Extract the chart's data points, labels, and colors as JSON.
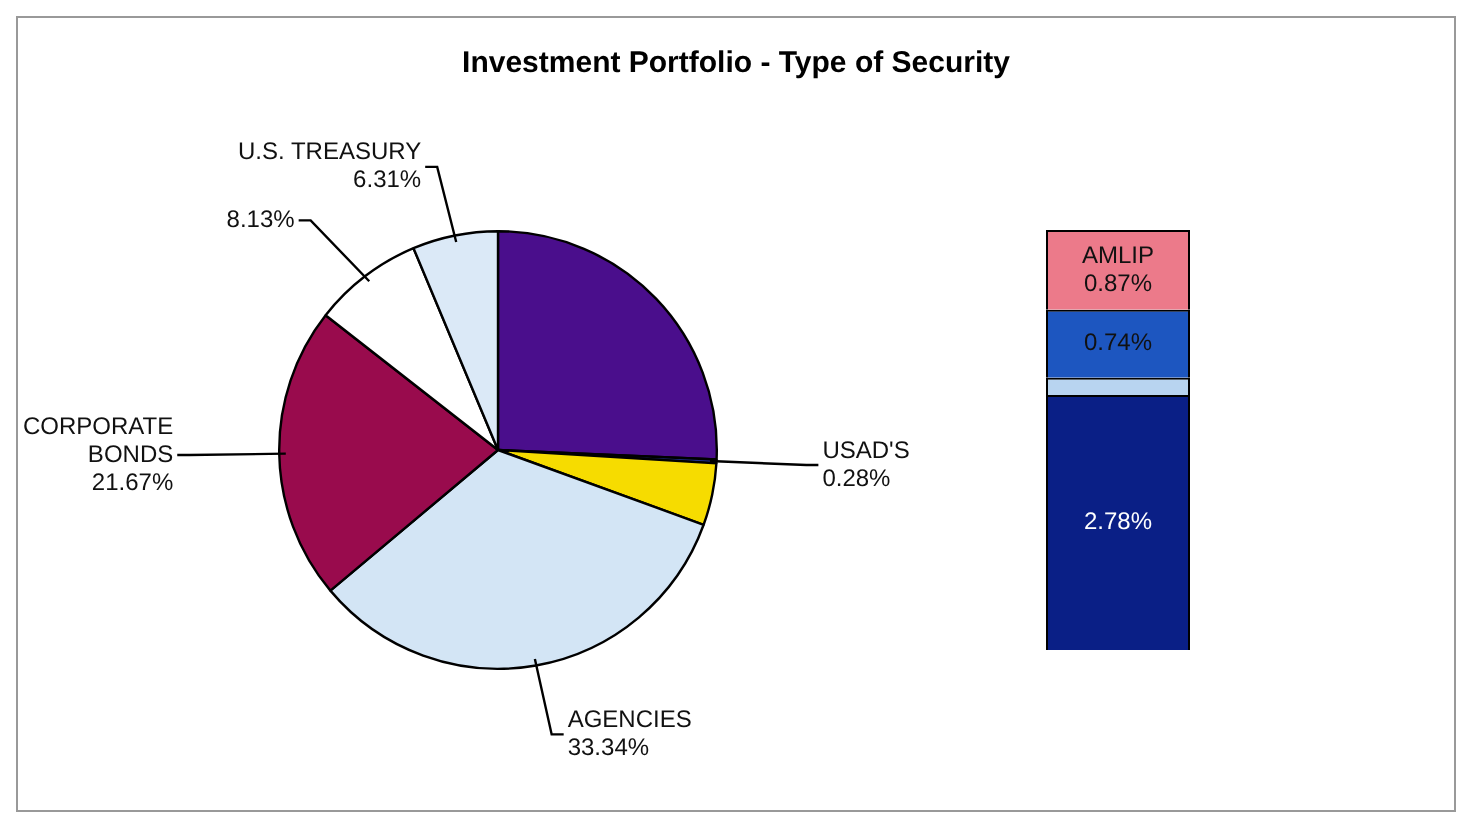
{
  "chart_data": [
    {
      "type": "pie",
      "title": "Investment Portfolio - Type of Security",
      "categories": [
        null,
        "USAD'S",
        null,
        "AGENCIES",
        "CORPORATE BONDS",
        null,
        "U.S. TREASURY"
      ],
      "values": [
        25.69,
        0.28,
        4.58,
        33.34,
        21.67,
        8.13,
        6.31
      ],
      "value_labels": [
        null,
        "0.28%",
        null,
        "33.34%",
        "21.67%",
        "8.13%",
        "6.31%"
      ],
      "colors": [
        "#4a0e8c",
        "#1f2f8f",
        "#f6dc00",
        "#d3e5f5",
        "#990b4d",
        "#ffffff",
        "#dbe9f7"
      ],
      "legend": false
    },
    {
      "type": "bar",
      "stacked": true,
      "categories": [
        null
      ],
      "legend": false,
      "series": [
        {
          "color": "#0a1f86",
          "values": [
            2.78
          ],
          "value_labels": [
            "2.78%"
          ]
        },
        {
          "color": "#b8d4f0",
          "values": [
            0.19
          ],
          "value_labels": [
            null
          ]
        },
        {
          "color": "#1d56c0",
          "values": [
            0.74
          ],
          "value_labels": [
            "0.74%"
          ]
        },
        {
          "name": "AMLIP",
          "color": "#ec7a8a",
          "values": [
            0.87
          ],
          "value_labels": [
            "0.87%"
          ]
        }
      ]
    }
  ]
}
